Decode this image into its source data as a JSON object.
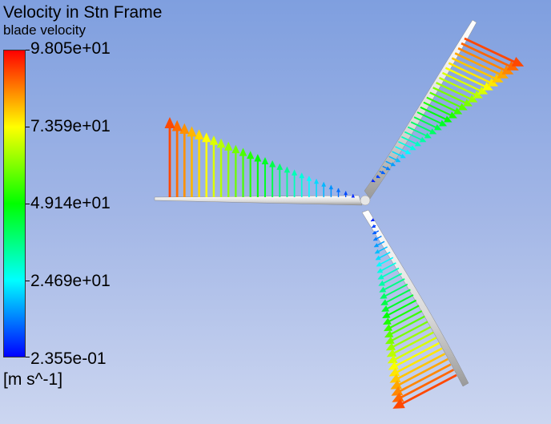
{
  "legend": {
    "title": "Velocity in Stn Frame",
    "variable": "blade velocity",
    "units": "[m s^-1]",
    "min": 0.2355,
    "max": 98.05,
    "ticks": [
      {
        "label": "9.805e+01",
        "value": 98.05
      },
      {
        "label": "7.359e+01",
        "value": 73.59
      },
      {
        "label": "4.914e+01",
        "value": 49.14
      },
      {
        "label": "2.469e+01",
        "value": 24.69
      },
      {
        "label": "2.355e-01",
        "value": 0.2355
      }
    ],
    "colormap": [
      "#0000ff",
      "#0080ff",
      "#00ffff",
      "#00ff80",
      "#00ff00",
      "#80ff00",
      "#ffff00",
      "#ff8000",
      "#ff0000"
    ]
  },
  "scene": {
    "background_top": "#7f9fdf",
    "background_bottom": "#ccd6f0",
    "blade_count": 3
  }
}
